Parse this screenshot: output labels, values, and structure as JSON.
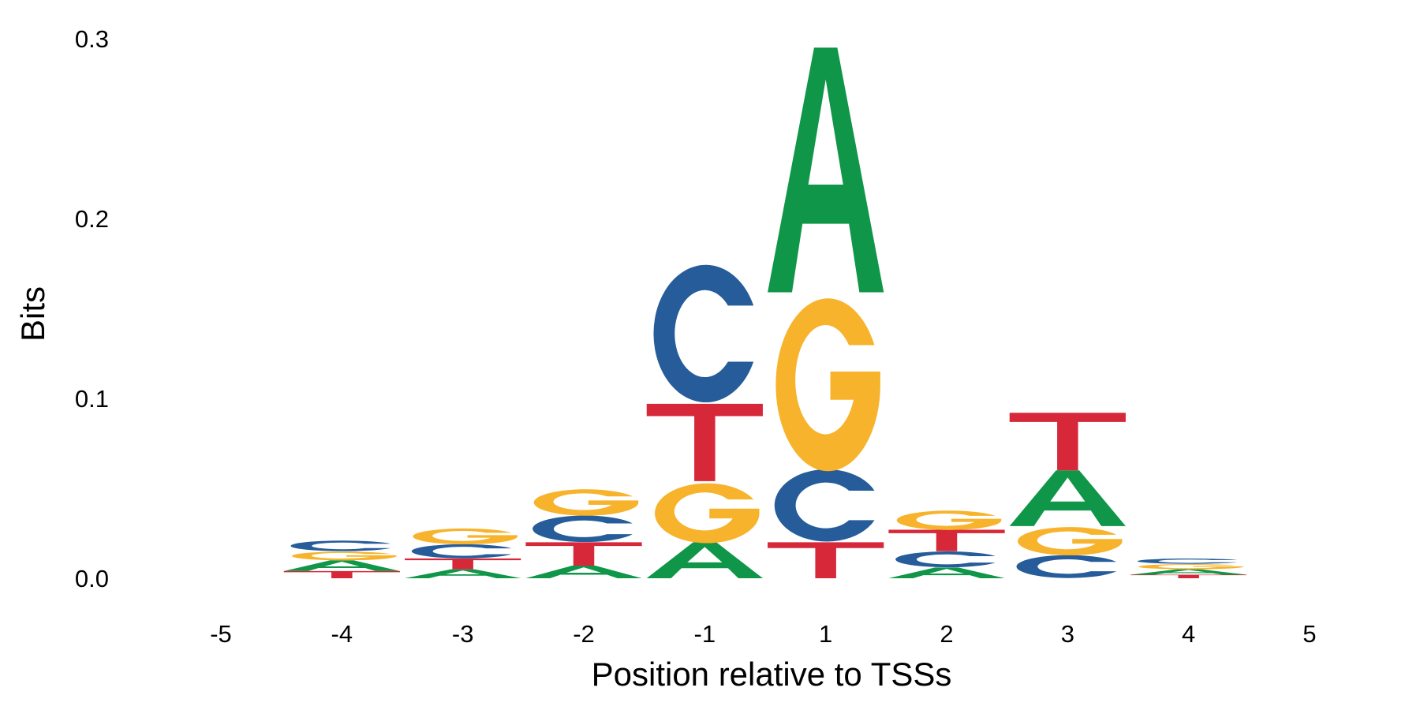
{
  "chart_data": {
    "type": "sequence-logo",
    "xlabel": "Position relative to TSSs",
    "ylabel": "Bits",
    "ylim": [
      0,
      0.3
    ],
    "y_ticks": [
      "0.0",
      "0.1",
      "0.2",
      "0.3"
    ],
    "x_ticks": [
      "-5",
      "-4",
      "-3",
      "-2",
      "-1",
      "1",
      "2",
      "3",
      "4",
      "5"
    ],
    "grid": false,
    "legend": "none",
    "colors": {
      "A": "#109648",
      "C": "#255c99",
      "G": "#f7b32b",
      "T": "#d62839"
    },
    "positions": [
      {
        "position": "-5",
        "letters": []
      },
      {
        "position": "-4",
        "letters": [
          {
            "base": "T",
            "bits": 0.004
          },
          {
            "base": "A",
            "bits": 0.006
          },
          {
            "base": "G",
            "bits": 0.005
          },
          {
            "base": "C",
            "bits": 0.006
          }
        ]
      },
      {
        "position": "-3",
        "letters": [
          {
            "base": "A",
            "bits": 0.005
          },
          {
            "base": "T",
            "bits": 0.006
          },
          {
            "base": "C",
            "bits": 0.008
          },
          {
            "base": "G",
            "bits": 0.009
          }
        ]
      },
      {
        "position": "-2",
        "letters": [
          {
            "base": "A",
            "bits": 0.007
          },
          {
            "base": "T",
            "bits": 0.013
          },
          {
            "base": "C",
            "bits": 0.015
          },
          {
            "base": "G",
            "bits": 0.015
          }
        ]
      },
      {
        "position": "-1",
        "letters": [
          {
            "base": "A",
            "bits": 0.02
          },
          {
            "base": "G",
            "bits": 0.034
          },
          {
            "base": "T",
            "bits": 0.043
          },
          {
            "base": "C",
            "bits": 0.078
          }
        ]
      },
      {
        "position": "1",
        "letters": [
          {
            "base": "T",
            "bits": 0.02
          },
          {
            "base": "C",
            "bits": 0.041
          },
          {
            "base": "G",
            "bits": 0.098
          },
          {
            "base": "A",
            "bits": 0.136
          }
        ]
      },
      {
        "position": "2",
        "letters": [
          {
            "base": "A",
            "bits": 0.006
          },
          {
            "base": "C",
            "bits": 0.009
          },
          {
            "base": "T",
            "bits": 0.012
          },
          {
            "base": "G",
            "bits": 0.011
          }
        ]
      },
      {
        "position": "3",
        "letters": [
          {
            "base": "C",
            "bits": 0.013
          },
          {
            "base": "G",
            "bits": 0.016
          },
          {
            "base": "A",
            "bits": 0.031
          },
          {
            "base": "T",
            "bits": 0.032
          }
        ]
      },
      {
        "position": "4",
        "letters": [
          {
            "base": "T",
            "bits": 0.002
          },
          {
            "base": "A",
            "bits": 0.003
          },
          {
            "base": "G",
            "bits": 0.003
          },
          {
            "base": "C",
            "bits": 0.003
          }
        ]
      },
      {
        "position": "5",
        "letters": []
      }
    ]
  }
}
